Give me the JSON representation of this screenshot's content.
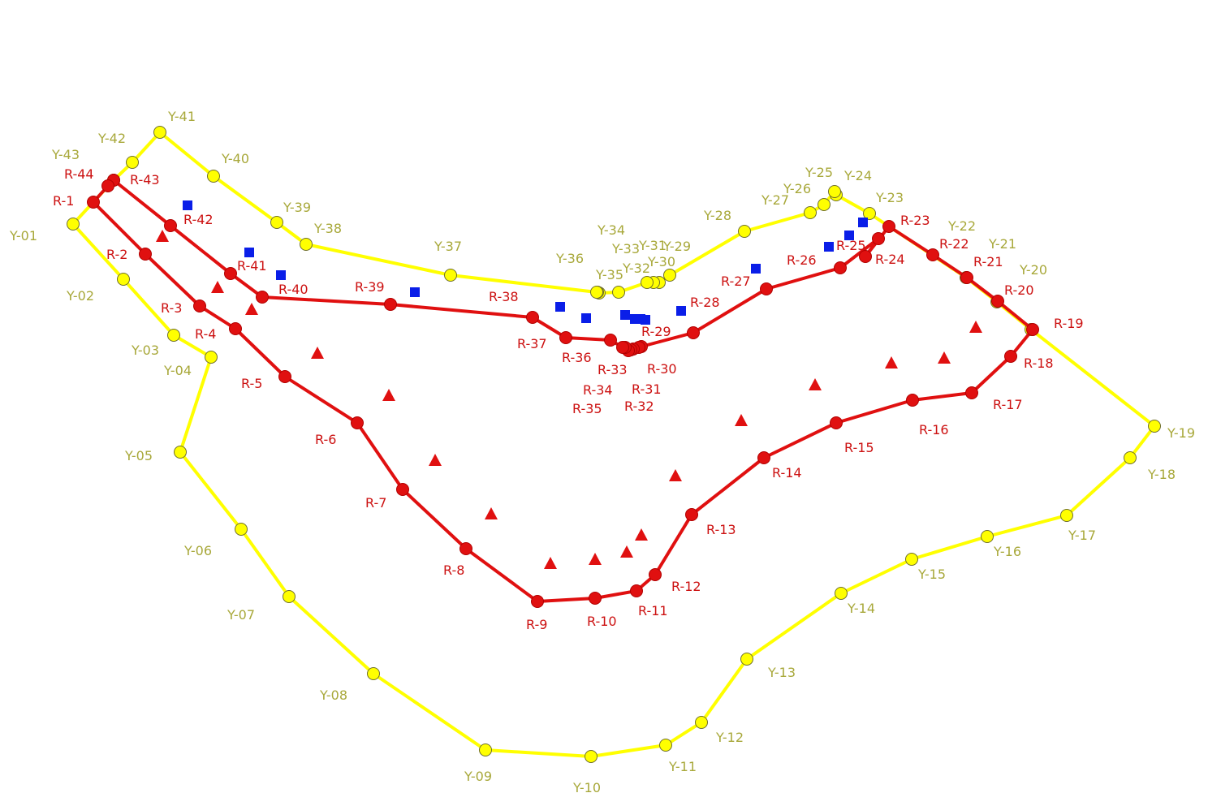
{
  "colors": {
    "yellow_line": "#ffff00",
    "yellow_node": "#ffff00",
    "node_stroke": "#6e6e2a",
    "yellow_label": "#a8a83a",
    "red_line": "#e01010",
    "red_node": "#e01010",
    "red_label": "#cc1111",
    "square": "#0a1ee8",
    "triangle": "#e01010"
  },
  "yellow_path": {
    "labels": [
      "Y-01",
      "Y-02",
      "Y-03",
      "Y-04",
      "Y-05",
      "Y-06",
      "Y-07",
      "Y-08",
      "Y-09",
      "Y-10",
      "Y-11",
      "Y-12",
      "Y-13",
      "Y-14",
      "Y-15",
      "Y-16",
      "Y-17",
      "Y-18",
      "Y-19",
      "Y-20",
      "Y-21",
      "Y-22",
      "Y-23",
      "Y-24",
      "Y-25",
      "Y-26",
      "Y-27",
      "Y-28",
      "Y-29",
      "Y-30",
      "Y-31",
      "Y-32",
      "Y-33",
      "Y-34",
      "Y-35",
      "Y-36",
      "Y-37",
      "Y-38",
      "Y-39",
      "Y-40",
      "Y-41",
      "Y-42",
      "Y-43"
    ]
  },
  "red_path": {
    "labels": [
      "R-1",
      "R-2",
      "R-3",
      "R-4",
      "R-5",
      "R-6",
      "R-7",
      "R-8",
      "R-9",
      "R-10",
      "R-11",
      "R-12",
      "R-13",
      "R-14",
      "R-15",
      "R-16",
      "R-17",
      "R-18",
      "R-19",
      "R-20",
      "R-21",
      "R-22",
      "R-23",
      "R-24",
      "R-25",
      "R-26",
      "R-27",
      "R-28",
      "R-29",
      "R-30",
      "R-31",
      "R-32",
      "R-33",
      "R-34",
      "R-35",
      "R-36",
      "R-37",
      "R-38",
      "R-39",
      "R-40",
      "R-41",
      "R-42",
      "R-43",
      "R-44"
    ]
  },
  "markers": {
    "square_icon": "blue-square-marker",
    "triangle_icon": "red-triangle-marker"
  }
}
